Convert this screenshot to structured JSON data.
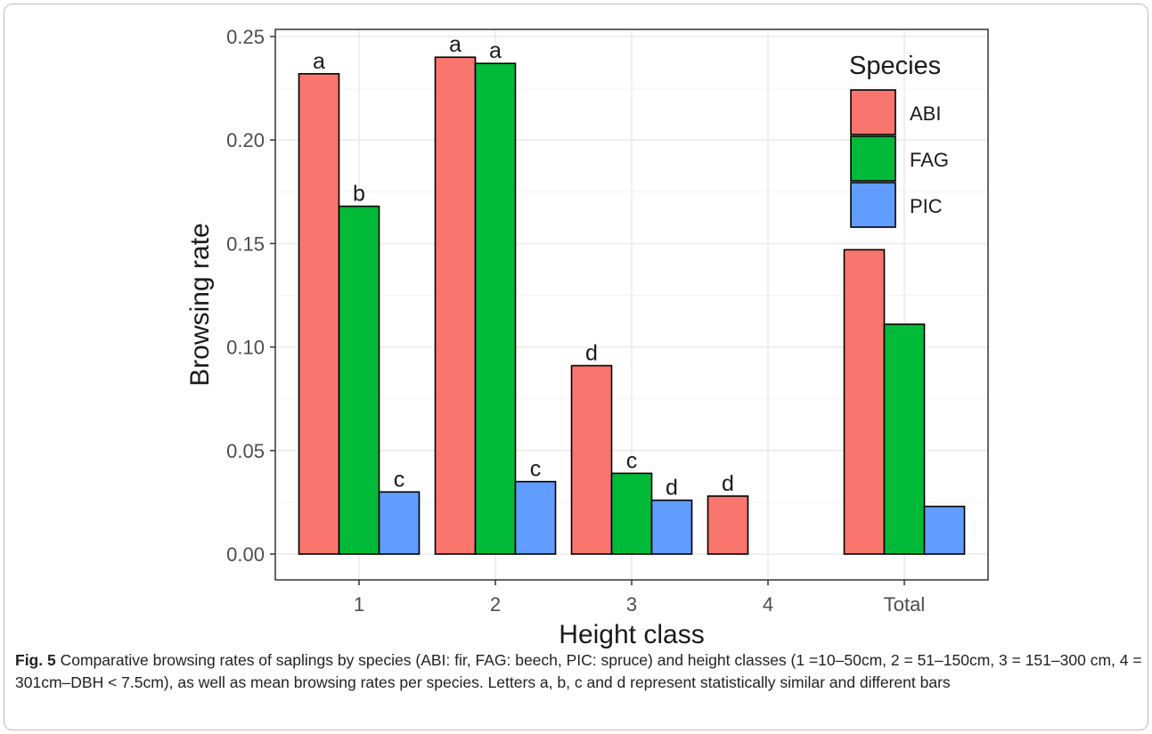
{
  "figure": {
    "label": "Fig. 5",
    "caption": "Comparative browsing rates of saplings by species (ABI: fir, FAG: beech, PIC: spruce) and height classes (1 =10–50cm, 2 = 51–150cm, 3 = 151–300 cm, 4 = 301cm–DBH < 7.5cm), as well as mean browsing rates per species. Letters a, b, c and d represent statistically similar and different bars"
  },
  "chart_data": {
    "type": "bar",
    "title": "",
    "xlabel": "Height class",
    "ylabel": "Browsing rate",
    "categories": [
      "1",
      "2",
      "3",
      "4",
      "Total"
    ],
    "ylim": [
      0,
      0.25
    ],
    "yticks": [
      "0.00",
      "0.05",
      "0.10",
      "0.15",
      "0.20",
      "0.25"
    ],
    "grid": true,
    "legend": {
      "title": "Species",
      "placement": "top-right"
    },
    "series": [
      {
        "name": "ABI",
        "color": "#F8766D",
        "values": [
          0.232,
          0.24,
          0.091,
          0.028,
          0.147
        ],
        "letters": [
          "a",
          "a",
          "d",
          "d",
          ""
        ]
      },
      {
        "name": "FAG",
        "color": "#00BA38",
        "values": [
          0.168,
          0.237,
          0.039,
          0.0,
          0.111
        ],
        "letters": [
          "b",
          "a",
          "c",
          "",
          ""
        ]
      },
      {
        "name": "PIC",
        "color": "#619CFF",
        "values": [
          0.03,
          0.035,
          0.026,
          0.0,
          0.023
        ],
        "letters": [
          "c",
          "c",
          "d",
          "",
          ""
        ]
      }
    ]
  }
}
